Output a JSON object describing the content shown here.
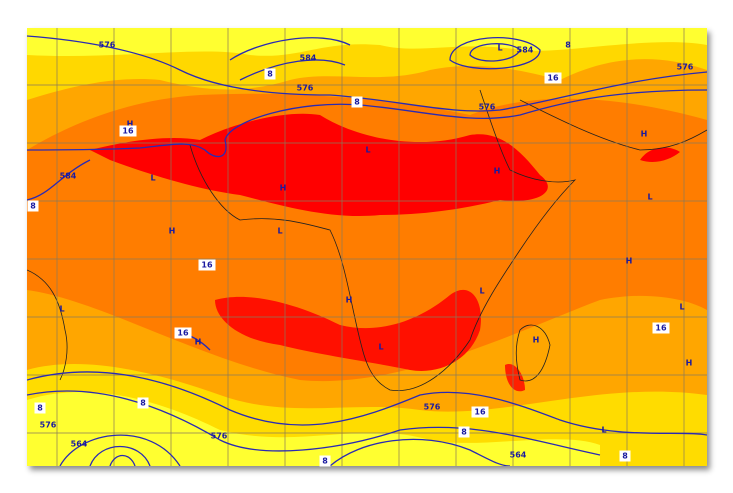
{
  "labels": [
    "576",
    "H",
    "16",
    "8",
    "584",
    "576",
    "8",
    "L",
    "584",
    "8",
    "16",
    "576",
    "576",
    "584",
    "L",
    "H",
    "L",
    "H",
    "L",
    "H",
    "H",
    "L",
    "16",
    "H",
    "H",
    "L",
    "16",
    "H",
    "L",
    "16",
    "H",
    "L",
    "H",
    "8",
    "8",
    "576",
    "576",
    "16",
    "L",
    "8",
    "564",
    "8",
    "8",
    "576",
    "564",
    "8",
    "L"
  ]
}
